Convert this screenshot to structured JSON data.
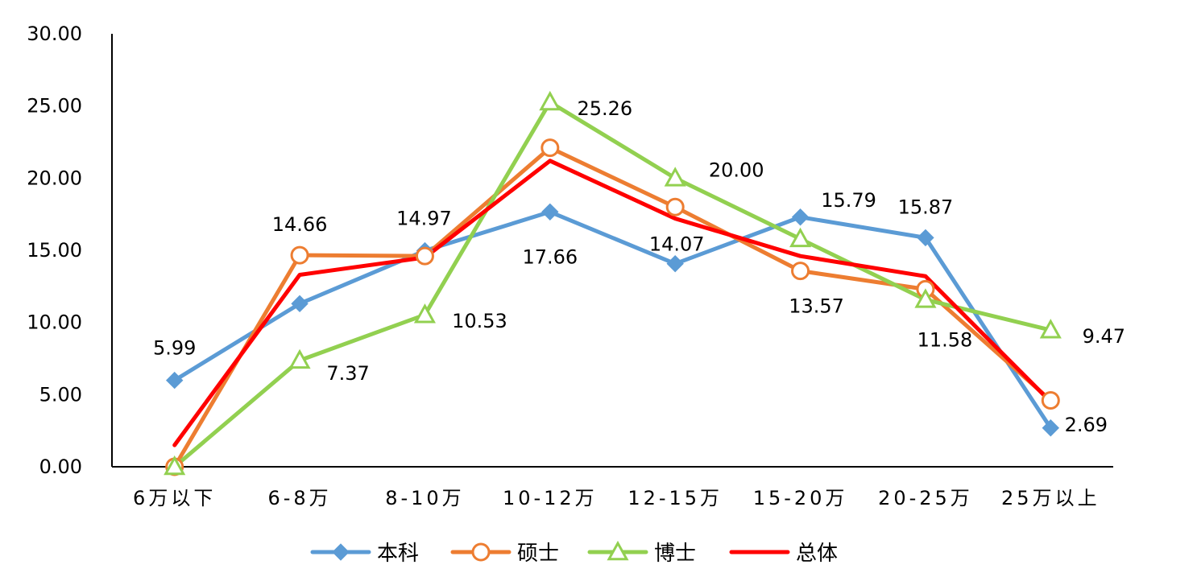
{
  "chart_data": {
    "type": "line",
    "title": "",
    "xlabel": "",
    "ylabel": "",
    "ylim": [
      0,
      30
    ],
    "yticks": [
      "0.00",
      "5.00",
      "10.00",
      "15.00",
      "20.00",
      "25.00",
      "30.00"
    ],
    "categories": [
      "6万以下",
      "6-8万",
      "8-10万",
      "10-12万",
      "12-15万",
      "15-20万",
      "20-25万",
      "25万以上"
    ],
    "legend_position": "bottom",
    "series": [
      {
        "name": "本科",
        "color": "#5b9bd5",
        "marker": "diamond",
        "values": [
          5.99,
          11.3,
          14.97,
          17.66,
          14.07,
          17.3,
          15.87,
          2.69
        ],
        "labels": [
          "5.99",
          "",
          "14.97",
          "17.66",
          "14.07",
          "",
          "15.87",
          "2.69"
        ]
      },
      {
        "name": "硕士",
        "color": "#ed7d31",
        "marker": "circle",
        "values": [
          0.0,
          14.66,
          14.6,
          22.1,
          18.0,
          13.57,
          12.3,
          4.6
        ],
        "labels": [
          "",
          "14.66",
          "",
          "",
          "",
          "13.57",
          "",
          ""
        ]
      },
      {
        "name": "博士",
        "color": "#92d050",
        "marker": "triangle",
        "values": [
          0.0,
          7.37,
          10.53,
          25.26,
          20.0,
          15.79,
          11.58,
          9.47
        ],
        "labels": [
          "",
          "7.37",
          "10.53",
          "25.26",
          "20.00",
          "15.79",
          "11.58",
          "9.47"
        ]
      },
      {
        "name": "总体",
        "color": "#ff0000",
        "marker": "none",
        "values": [
          1.5,
          13.3,
          14.5,
          21.2,
          17.2,
          14.6,
          13.2,
          4.5
        ],
        "labels": [
          "",
          "",
          "",
          "",
          "",
          "",
          "",
          ""
        ]
      }
    ]
  }
}
